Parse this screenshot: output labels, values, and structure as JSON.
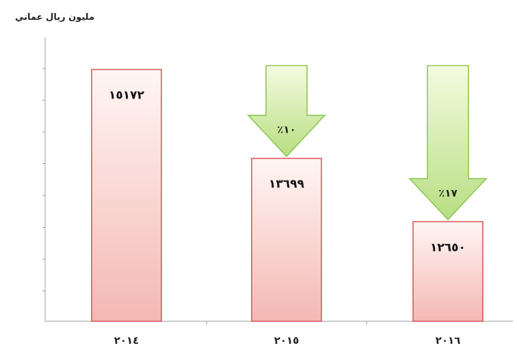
{
  "chart_data": {
    "type": "bar",
    "ylabel": "مليون ريال عماني",
    "categories": [
      "٢٠١٤",
      "٢٠١٥",
      "٢٠١٦"
    ],
    "values": [
      15172,
      13699,
      12650
    ],
    "value_labels": [
      "١٥١٧٢",
      "١٣٦٩٩",
      "١٢٦٥٠"
    ],
    "change_labels": [
      "",
      "٪١٠",
      "٪١٧"
    ],
    "ylim": [
      11000,
      15700
    ],
    "grid": false,
    "legend": "none",
    "colors": {
      "bar_top": "#fff6f4",
      "bar_bottom": "#f4b8b4",
      "bar_border": "#d8585a",
      "arrow_fill_top": "#f4fbe0",
      "arrow_fill_bottom": "#b8de82",
      "arrow_border": "#8cc654",
      "axis": "#999999"
    }
  }
}
